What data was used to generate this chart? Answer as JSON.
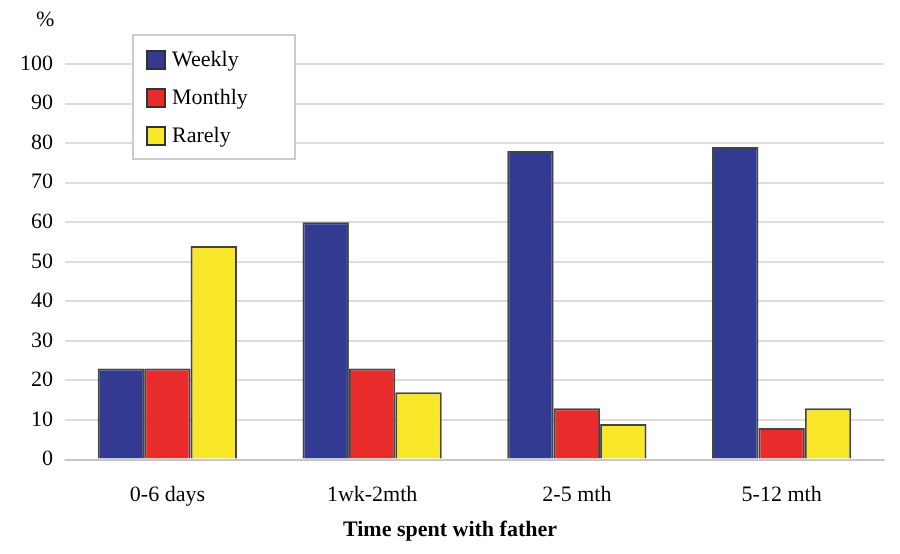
{
  "chart_data": {
    "type": "bar",
    "xlabel": "Time spent with father",
    "ylabel": "%",
    "categories": [
      "0-6 days",
      "1wk-2mth",
      "2-5 mth",
      "5-12 mth"
    ],
    "series": [
      {
        "name": "Weekly",
        "color": "#333a92",
        "values": [
          23,
          60,
          78,
          79
        ]
      },
      {
        "name": "Monthly",
        "color": "#e82c2c",
        "values": [
          23,
          23,
          13,
          8
        ]
      },
      {
        "name": "Rarely",
        "color": "#f9e82a",
        "values": [
          54,
          17,
          9,
          13
        ]
      }
    ],
    "ylim": [
      0,
      100
    ],
    "yticks": [
      0,
      10,
      20,
      30,
      40,
      50,
      60,
      70,
      80,
      90,
      100
    ],
    "grid": "y",
    "legend": "top left"
  }
}
